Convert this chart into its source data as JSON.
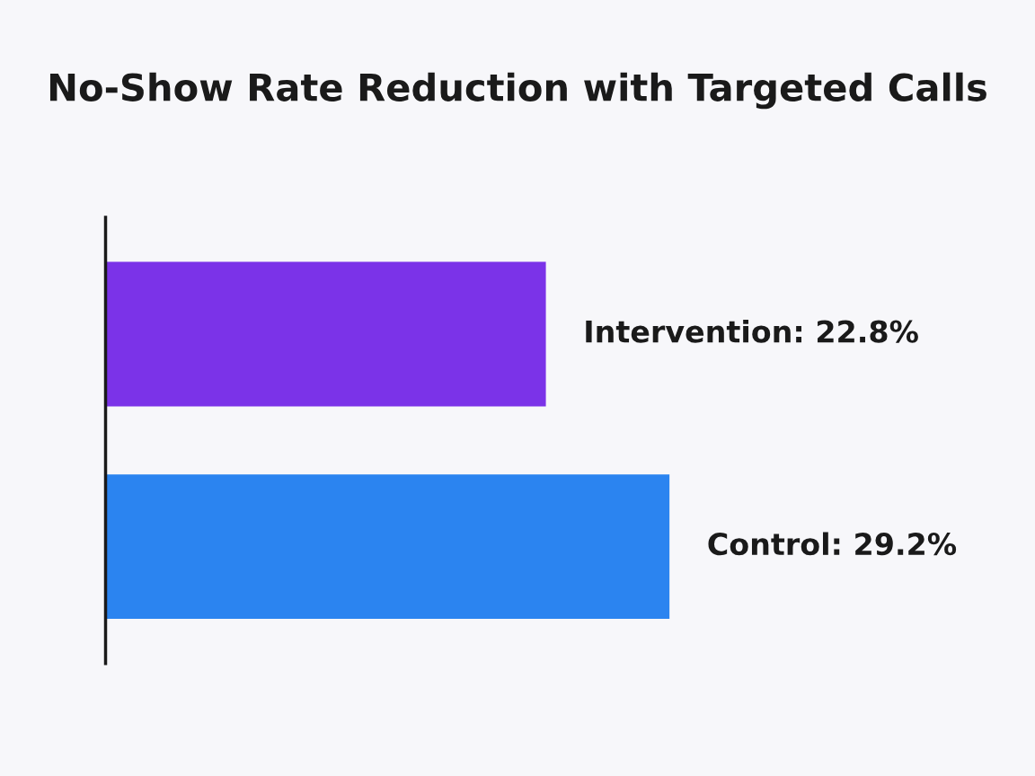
{
  "chart_data": {
    "type": "bar",
    "orientation": "horizontal",
    "title": "No-Show Rate Reduction with Targeted Calls",
    "categories": [
      null,
      null
    ],
    "values": [
      22.8,
      29.2
    ],
    "colors": [
      "#7b33e8",
      "#2b84f0"
    ],
    "value_labels": [
      "Intervention: 22.8%",
      "Control: 29.2%"
    ],
    "grid": false,
    "legend": false
  }
}
